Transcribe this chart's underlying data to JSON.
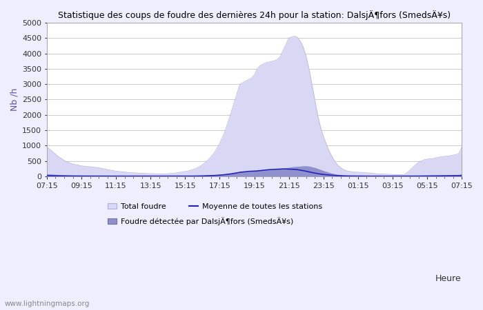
{
  "title": "Statistique des coups de foudre des dernières 24h pour la station: DalsjÄ¶fors (SmedsÄ¥s)",
  "ylabel": "Nb /h",
  "xlabel": "Heure",
  "watermark": "www.lightningmaps.org",
  "xtick_labels": [
    "07:15",
    "09:15",
    "11:15",
    "13:15",
    "15:15",
    "17:15",
    "19:15",
    "21:15",
    "23:15",
    "01:15",
    "03:15",
    "05:15",
    "07:15"
  ],
  "ylim": [
    0,
    5000
  ],
  "ytick_values": [
    0,
    500,
    1000,
    1500,
    2000,
    2500,
    3000,
    3500,
    4000,
    4500,
    5000
  ],
  "legend_total": "Total foudre",
  "legend_station": "Foudre détectée par DalsjÄ¶fors (SmedsÄ¥s)",
  "legend_moyenne": "Moyenne de toutes les stations",
  "color_total_fill": "#d8d8f5",
  "color_total_edge": "#b0b0e0",
  "color_station_fill": "#9090cc",
  "color_station_edge": "#7070aa",
  "color_moyenne_line": "#2222bb",
  "bg_color": "#eeeeff",
  "plot_bg_color": "#ffffff",
  "n_points": 145,
  "total_foudre": [
    950,
    880,
    800,
    720,
    640,
    580,
    520,
    470,
    430,
    400,
    380,
    360,
    340,
    330,
    320,
    310,
    300,
    290,
    280,
    260,
    240,
    220,
    200,
    185,
    170,
    160,
    150,
    140,
    130,
    120,
    115,
    110,
    105,
    100,
    95,
    90,
    88,
    86,
    84,
    82,
    80,
    82,
    85,
    90,
    100,
    115,
    130,
    145,
    160,
    175,
    200,
    230,
    270,
    320,
    380,
    450,
    540,
    640,
    760,
    900,
    1080,
    1280,
    1520,
    1800,
    2100,
    2400,
    2700,
    3000,
    3050,
    3100,
    3150,
    3200,
    3300,
    3500,
    3600,
    3650,
    3700,
    3720,
    3740,
    3760,
    3800,
    3900,
    4100,
    4300,
    4500,
    4540,
    4560,
    4520,
    4400,
    4200,
    3900,
    3500,
    3000,
    2500,
    2000,
    1600,
    1300,
    1050,
    820,
    640,
    480,
    360,
    280,
    220,
    180,
    160,
    150,
    140,
    135,
    130,
    120,
    115,
    110,
    100,
    90,
    80,
    75,
    70,
    68,
    65,
    60,
    58,
    55,
    52,
    50,
    120,
    200,
    290,
    380,
    450,
    500,
    540,
    560,
    570,
    580,
    600,
    620,
    640,
    650,
    660,
    670,
    690,
    710,
    730,
    950
  ],
  "station_foudre": [
    80,
    74,
    68,
    62,
    56,
    50,
    45,
    40,
    36,
    32,
    28,
    25,
    22,
    20,
    18,
    16,
    15,
    14,
    13,
    12,
    11,
    10,
    9,
    8,
    7,
    6,
    5,
    5,
    4,
    4,
    3,
    3,
    3,
    2,
    2,
    2,
    2,
    2,
    2,
    1,
    1,
    1,
    1,
    1,
    2,
    2,
    3,
    4,
    5,
    6,
    8,
    10,
    12,
    15,
    18,
    22,
    26,
    30,
    36,
    42,
    50,
    60,
    72,
    86,
    100,
    115,
    130,
    148,
    150,
    152,
    155,
    160,
    165,
    175,
    185,
    195,
    205,
    215,
    220,
    225,
    230,
    240,
    255,
    270,
    290,
    305,
    315,
    325,
    330,
    340,
    340,
    330,
    310,
    285,
    255,
    220,
    185,
    155,
    128,
    100,
    78,
    60,
    46,
    36,
    28,
    22,
    18,
    15,
    12,
    10,
    8,
    7,
    6,
    5,
    4,
    3,
    3,
    2,
    2,
    2,
    1,
    1,
    1,
    1,
    1,
    3,
    5,
    8,
    11,
    14,
    17,
    20,
    22,
    24,
    26,
    28,
    30,
    33,
    36,
    40,
    44,
    48,
    53,
    58,
    80
  ],
  "moyenne_line": [
    20,
    18,
    16,
    15,
    14,
    13,
    12,
    11,
    10,
    10,
    9,
    9,
    8,
    8,
    8,
    7,
    7,
    7,
    6,
    6,
    6,
    5,
    5,
    5,
    5,
    4,
    4,
    4,
    4,
    3,
    3,
    3,
    3,
    3,
    3,
    3,
    3,
    3,
    3,
    3,
    3,
    3,
    3,
    3,
    3,
    4,
    4,
    4,
    5,
    5,
    6,
    7,
    8,
    10,
    12,
    15,
    18,
    22,
    26,
    32,
    38,
    46,
    56,
    68,
    80,
    95,
    112,
    130,
    140,
    150,
    160,
    165,
    170,
    175,
    185,
    195,
    205,
    215,
    220,
    225,
    230,
    235,
    240,
    240,
    235,
    230,
    225,
    215,
    200,
    185,
    165,
    145,
    125,
    105,
    88,
    72,
    60,
    50,
    42,
    35,
    28,
    23,
    18,
    15,
    12,
    10,
    9,
    8,
    7,
    6,
    6,
    5,
    5,
    5,
    4,
    4,
    4,
    4,
    3,
    3,
    3,
    3,
    3,
    3,
    3,
    4,
    5,
    6,
    7,
    8,
    9,
    10,
    11,
    12,
    13,
    14,
    15,
    16,
    17,
    18,
    19,
    20,
    21,
    22,
    20
  ]
}
